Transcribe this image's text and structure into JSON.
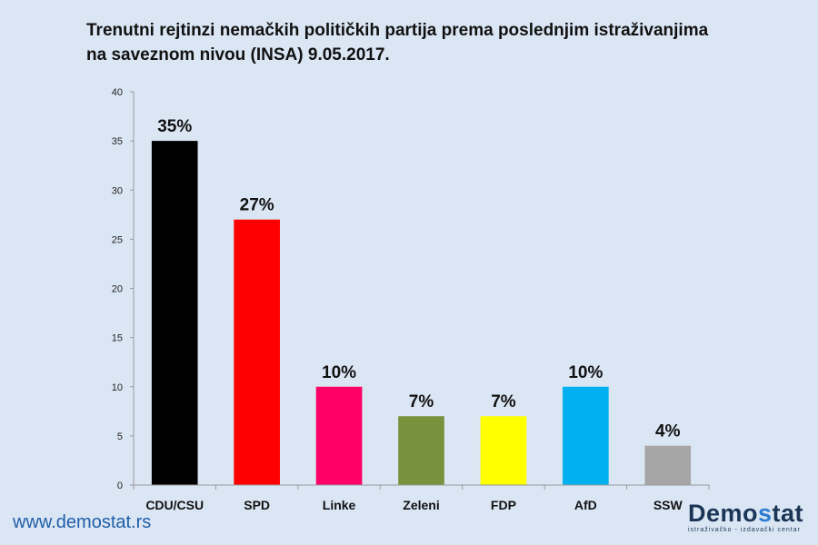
{
  "chart_data": {
    "type": "bar",
    "title_lines": [
      "Trenutni rejtinzi nemačkih političkih partija  prema poslednjim istraživanjima",
      "na saveznom nivou (INSA) 9.05.2017."
    ],
    "xlabel": "",
    "ylabel": "",
    "categories": [
      "CDU/CSU",
      "SPD",
      "Linke",
      "Zeleni",
      "FDP",
      "AfD",
      "SSW"
    ],
    "values": [
      35,
      27,
      10,
      7,
      7,
      10,
      4
    ],
    "data_labels": [
      "35%",
      "27%",
      "10%",
      "7%",
      "7%",
      "10%",
      "4%"
    ],
    "colors": [
      "#000000",
      "#ff0000",
      "#ff0066",
      "#76923c",
      "#ffff00",
      "#00b0f0",
      "#a6a6a6"
    ],
    "ylim": [
      0,
      40
    ],
    "yticks": [
      0,
      5,
      10,
      15,
      20,
      25,
      30,
      35,
      40
    ],
    "grid": false,
    "legend": "none"
  },
  "footer": {
    "website": "www.demostat.rs",
    "logo_name_prefix": "Demo",
    "logo_name_accent": "s",
    "logo_name_suffix": "tat",
    "logo_tagline": "istraživačko - izdavački centar"
  }
}
